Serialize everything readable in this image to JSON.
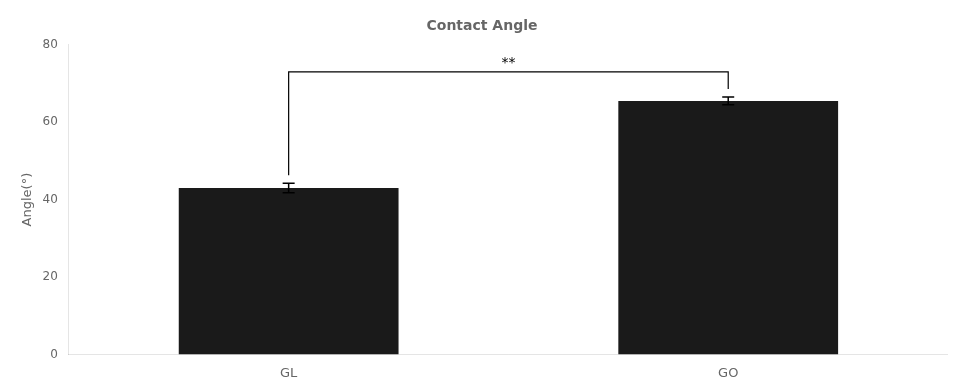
{
  "chart_data": {
    "type": "bar",
    "title": "Contact Angle",
    "y_label": "Angle(°)",
    "categories": [
      "GL",
      "GO"
    ],
    "values": [
      43.0,
      65.5
    ],
    "errors": [
      1.2,
      1.0
    ],
    "color": "#1a1a1a",
    "ylim": [
      0,
      80
    ],
    "yticks": [
      0,
      20,
      40,
      60,
      80
    ],
    "grid": false,
    "annotations": [
      {
        "text": "**",
        "between": [
          "GL",
          "GO"
        ],
        "y": 73.0
      }
    ]
  }
}
